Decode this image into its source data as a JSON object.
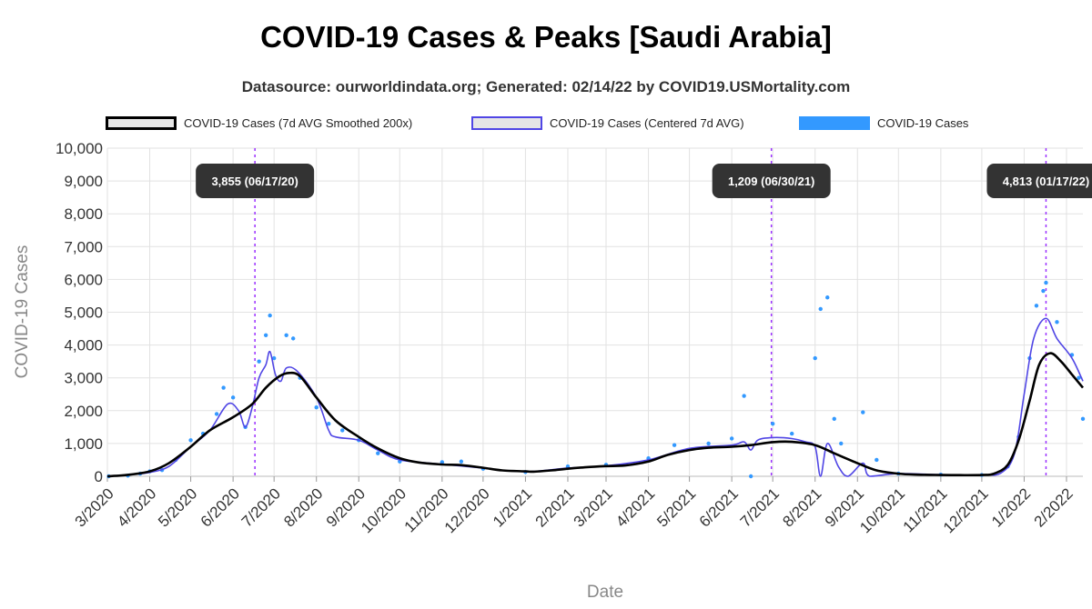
{
  "chart_data": {
    "type": "line",
    "title": "COVID-19 Cases & Peaks [Saudi Arabia]",
    "subtitle": "Datasource: ourworldindata.org; Generated: 02/14/22 by COVID19.USMortality.com",
    "xlabel": "Date",
    "ylabel": "COVID-19 Cases",
    "x_start_date": "2020-03-01",
    "x_end_date": "2022-02-13",
    "ylim": [
      0,
      10000
    ],
    "y_ticks": [
      0,
      1000,
      2000,
      3000,
      4000,
      5000,
      6000,
      7000,
      8000,
      9000,
      10000
    ],
    "y_tick_labels": [
      "0",
      "1,000",
      "2,000",
      "3,000",
      "4,000",
      "5,000",
      "6,000",
      "7,000",
      "8,000",
      "9,000",
      "10,000"
    ],
    "x_tick_labels": [
      "3/2020",
      "4/2020",
      "5/2020",
      "6/2020",
      "7/2020",
      "8/2020",
      "9/2020",
      "10/2020",
      "11/2020",
      "12/2020",
      "1/2021",
      "2/2021",
      "3/2021",
      "4/2021",
      "5/2021",
      "6/2021",
      "7/2021",
      "8/2021",
      "9/2021",
      "10/2021",
      "11/2021",
      "12/2021",
      "1/2022",
      "2/2022"
    ],
    "x_tick_dates": [
      "2020-03-01",
      "2020-04-01",
      "2020-05-01",
      "2020-06-01",
      "2020-07-01",
      "2020-08-01",
      "2020-09-01",
      "2020-10-01",
      "2020-11-01",
      "2020-12-01",
      "2021-01-01",
      "2021-02-01",
      "2021-03-01",
      "2021-04-01",
      "2021-05-01",
      "2021-06-01",
      "2021-07-01",
      "2021-08-01",
      "2021-09-01",
      "2021-10-01",
      "2021-11-01",
      "2021-12-01",
      "2022-01-01",
      "2022-02-01"
    ],
    "grid": true,
    "legend_position": "top",
    "series": [
      {
        "name": "COVID-19 Cases (7d AVG Smoothed 200x)",
        "style": "line",
        "color": "#000000",
        "points": [
          [
            "2020-03-01",
            0
          ],
          [
            "2020-03-15",
            40
          ],
          [
            "2020-04-01",
            150
          ],
          [
            "2020-04-15",
            400
          ],
          [
            "2020-05-01",
            900
          ],
          [
            "2020-05-15",
            1400
          ],
          [
            "2020-06-01",
            1800
          ],
          [
            "2020-06-15",
            2200
          ],
          [
            "2020-06-25",
            2700
          ],
          [
            "2020-07-05",
            3050
          ],
          [
            "2020-07-12",
            3150
          ],
          [
            "2020-07-20",
            3050
          ],
          [
            "2020-08-01",
            2400
          ],
          [
            "2020-08-15",
            1700
          ],
          [
            "2020-09-01",
            1200
          ],
          [
            "2020-09-15",
            850
          ],
          [
            "2020-10-01",
            550
          ],
          [
            "2020-10-15",
            420
          ],
          [
            "2020-11-01",
            360
          ],
          [
            "2020-11-15",
            340
          ],
          [
            "2020-12-01",
            260
          ],
          [
            "2020-12-15",
            180
          ],
          [
            "2021-01-01",
            150
          ],
          [
            "2021-01-07",
            140
          ],
          [
            "2021-01-20",
            180
          ],
          [
            "2021-02-01",
            230
          ],
          [
            "2021-02-15",
            280
          ],
          [
            "2021-03-01",
            310
          ],
          [
            "2021-03-15",
            330
          ],
          [
            "2021-04-01",
            450
          ],
          [
            "2021-04-15",
            650
          ],
          [
            "2021-05-01",
            800
          ],
          [
            "2021-05-15",
            870
          ],
          [
            "2021-06-01",
            900
          ],
          [
            "2021-06-15",
            950
          ],
          [
            "2021-07-01",
            1040
          ],
          [
            "2021-07-15",
            1050
          ],
          [
            "2021-08-01",
            950
          ],
          [
            "2021-08-15",
            700
          ],
          [
            "2021-09-01",
            400
          ],
          [
            "2021-09-15",
            180
          ],
          [
            "2021-10-01",
            80
          ],
          [
            "2021-10-15",
            50
          ],
          [
            "2021-11-01",
            40
          ],
          [
            "2021-11-15",
            35
          ],
          [
            "2021-12-01",
            40
          ],
          [
            "2021-12-10",
            80
          ],
          [
            "2021-12-20",
            350
          ],
          [
            "2021-12-28",
            1100
          ],
          [
            "2022-01-05",
            2300
          ],
          [
            "2022-01-12",
            3400
          ],
          [
            "2022-01-20",
            3750
          ],
          [
            "2022-01-28",
            3500
          ],
          [
            "2022-02-05",
            3100
          ],
          [
            "2022-02-13",
            2700
          ]
        ]
      },
      {
        "name": "COVID-19 Cases (Centered 7d AVG)",
        "style": "line",
        "color": "#5046e5",
        "points": [
          [
            "2020-03-01",
            0
          ],
          [
            "2020-03-20",
            60
          ],
          [
            "2020-04-01",
            120
          ],
          [
            "2020-04-15",
            300
          ],
          [
            "2020-05-01",
            900
          ],
          [
            "2020-05-15",
            1400
          ],
          [
            "2020-05-28",
            2200
          ],
          [
            "2020-06-05",
            2000
          ],
          [
            "2020-06-10",
            1500
          ],
          [
            "2020-06-15",
            2100
          ],
          [
            "2020-06-20",
            3000
          ],
          [
            "2020-06-25",
            3400
          ],
          [
            "2020-06-28",
            3800
          ],
          [
            "2020-07-02",
            3100
          ],
          [
            "2020-07-06",
            2900
          ],
          [
            "2020-07-10",
            3300
          ],
          [
            "2020-07-18",
            3200
          ],
          [
            "2020-08-01",
            2400
          ],
          [
            "2020-08-10",
            1400
          ],
          [
            "2020-08-15",
            1200
          ],
          [
            "2020-09-01",
            1100
          ],
          [
            "2020-09-15",
            800
          ],
          [
            "2020-10-01",
            500
          ],
          [
            "2020-11-01",
            370
          ],
          [
            "2020-12-01",
            250
          ],
          [
            "2021-01-01",
            140
          ],
          [
            "2021-02-01",
            250
          ],
          [
            "2021-03-01",
            320
          ],
          [
            "2021-04-01",
            500
          ],
          [
            "2021-05-01",
            850
          ],
          [
            "2021-06-01",
            950
          ],
          [
            "2021-06-10",
            1050
          ],
          [
            "2021-06-15",
            800
          ],
          [
            "2021-06-20",
            1100
          ],
          [
            "2021-07-01",
            1180
          ],
          [
            "2021-07-15",
            1150
          ],
          [
            "2021-07-25",
            1050
          ],
          [
            "2021-08-01",
            900
          ],
          [
            "2021-08-05",
            0
          ],
          [
            "2021-08-10",
            1000
          ],
          [
            "2021-08-18",
            300
          ],
          [
            "2021-08-25",
            0
          ],
          [
            "2021-09-05",
            400
          ],
          [
            "2021-09-10",
            0
          ],
          [
            "2021-10-01",
            80
          ],
          [
            "2021-11-01",
            50
          ],
          [
            "2021-12-01",
            40
          ],
          [
            "2021-12-15",
            100
          ],
          [
            "2021-12-25",
            700
          ],
          [
            "2022-01-01",
            2500
          ],
          [
            "2022-01-08",
            4200
          ],
          [
            "2022-01-17",
            4813
          ],
          [
            "2022-01-25",
            4200
          ],
          [
            "2022-02-05",
            3600
          ],
          [
            "2022-02-13",
            2900
          ]
        ]
      },
      {
        "name": "COVID-19 Cases",
        "style": "scatter",
        "color": "#3399ff",
        "points": [
          [
            "2020-03-02",
            0
          ],
          [
            "2020-03-16",
            20
          ],
          [
            "2020-03-25",
            80
          ],
          [
            "2020-04-01",
            150
          ],
          [
            "2020-04-10",
            190
          ],
          [
            "2020-04-20",
            500
          ],
          [
            "2020-05-01",
            1100
          ],
          [
            "2020-05-10",
            1300
          ],
          [
            "2020-05-20",
            1900
          ],
          [
            "2020-05-25",
            2700
          ],
          [
            "2020-06-01",
            2400
          ],
          [
            "2020-06-10",
            1500
          ],
          [
            "2020-06-20",
            3500
          ],
          [
            "2020-06-25",
            4300
          ],
          [
            "2020-06-28",
            4900
          ],
          [
            "2020-07-01",
            3600
          ],
          [
            "2020-07-10",
            4300
          ],
          [
            "2020-07-15",
            4200
          ],
          [
            "2020-07-20",
            3000
          ],
          [
            "2020-08-01",
            2100
          ],
          [
            "2020-08-10",
            1600
          ],
          [
            "2020-08-20",
            1400
          ],
          [
            "2020-09-01",
            1100
          ],
          [
            "2020-09-15",
            700
          ],
          [
            "2020-10-01",
            450
          ],
          [
            "2020-11-01",
            430
          ],
          [
            "2020-11-15",
            450
          ],
          [
            "2020-12-01",
            230
          ],
          [
            "2021-01-01",
            130
          ],
          [
            "2021-02-01",
            300
          ],
          [
            "2021-03-01",
            350
          ],
          [
            "2021-04-01",
            550
          ],
          [
            "2021-04-20",
            950
          ],
          [
            "2021-05-15",
            1000
          ],
          [
            "2021-06-01",
            1150
          ],
          [
            "2021-06-10",
            2450
          ],
          [
            "2021-06-15",
            0
          ],
          [
            "2021-07-01",
            1600
          ],
          [
            "2021-07-15",
            1300
          ],
          [
            "2021-08-01",
            3600
          ],
          [
            "2021-08-05",
            5100
          ],
          [
            "2021-08-10",
            5450
          ],
          [
            "2021-08-15",
            1750
          ],
          [
            "2021-08-20",
            1000
          ],
          [
            "2021-09-05",
            1950
          ],
          [
            "2021-09-15",
            500
          ],
          [
            "2021-10-01",
            80
          ],
          [
            "2021-11-01",
            50
          ],
          [
            "2021-12-01",
            40
          ],
          [
            "2021-12-20",
            300
          ],
          [
            "2021-12-28",
            1200
          ],
          [
            "2022-01-05",
            3600
          ],
          [
            "2022-01-10",
            5200
          ],
          [
            "2022-01-15",
            5650
          ],
          [
            "2022-01-17",
            5900
          ],
          [
            "2022-01-25",
            4700
          ],
          [
            "2022-02-05",
            3700
          ],
          [
            "2022-02-10",
            3000
          ],
          [
            "2022-02-13",
            1750
          ]
        ]
      }
    ],
    "peaks": [
      {
        "date": "2020-06-17",
        "label": "3,855 (06/17/20)"
      },
      {
        "date": "2021-06-30",
        "label": "1,209 (06/30/21)"
      },
      {
        "date": "2022-01-17",
        "label": "4,813 (01/17/22)"
      }
    ]
  }
}
